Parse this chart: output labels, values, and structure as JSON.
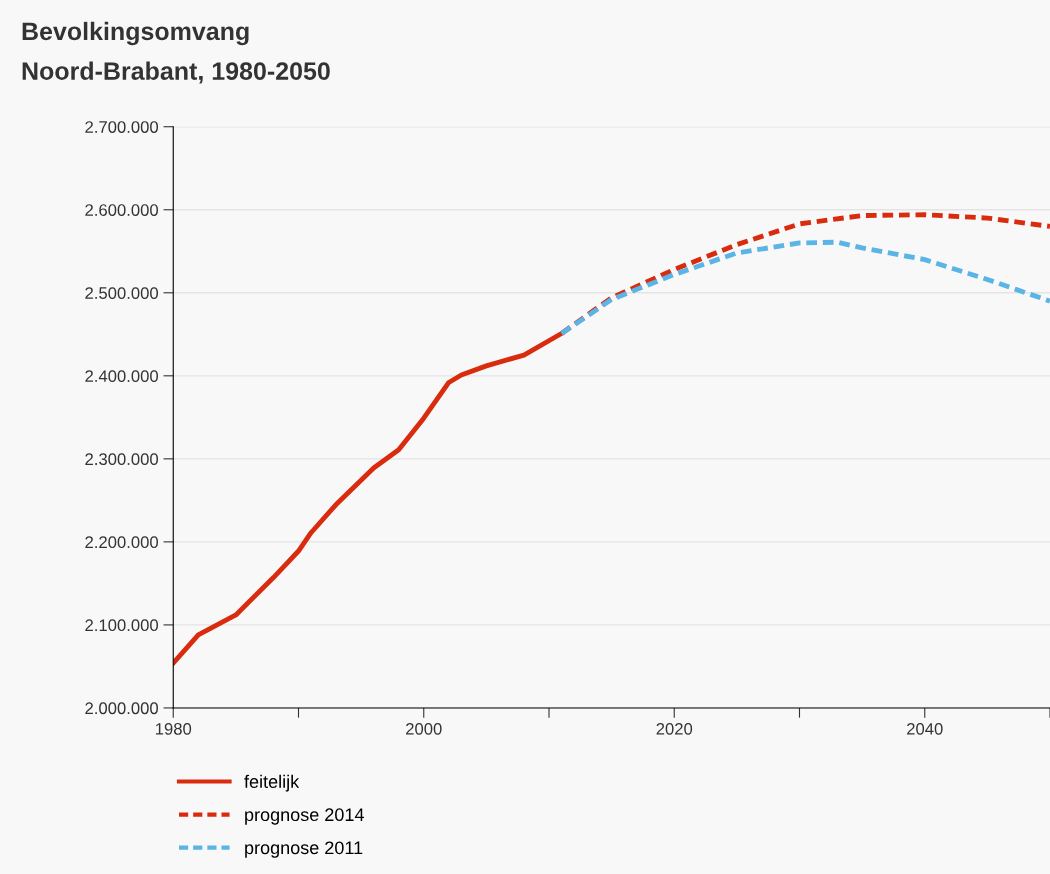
{
  "chart_data": {
    "type": "line",
    "title": "Bevolkingsomvang\nNoord-Brabant, 1980-2050",
    "series": [
      {
        "name": "feitelijk",
        "color": "#d92b0e",
        "line_style": "solid",
        "x": [
          1980,
          1982,
          1985,
          1988,
          1990,
          1991,
          1993,
          1996,
          1998,
          2000,
          2002,
          2003,
          2005,
          2008,
          2011
        ],
        "values": [
          2054000,
          2088000,
          2112000,
          2157000,
          2189000,
          2211000,
          2245000,
          2289000,
          2311000,
          2349000,
          2392000,
          2401000,
          2412000,
          2425000,
          2451000
        ]
      },
      {
        "name": "prognose 2014",
        "color": "#d92b0e",
        "line_style": "dashed",
        "x": [
          2011,
          2015,
          2020,
          2025,
          2030,
          2035,
          2040,
          2045,
          2050
        ],
        "values": [
          2451000,
          2494000,
          2528000,
          2558000,
          2583000,
          2593000,
          2594000,
          2590000,
          2580000
        ]
      },
      {
        "name": "prognose 2011",
        "color": "#5ab4e5",
        "line_style": "dashed",
        "x": [
          2011,
          2015,
          2020,
          2025,
          2030,
          2033,
          2035,
          2040,
          2045,
          2050
        ],
        "values": [
          2451000,
          2492000,
          2522000,
          2548000,
          2560000,
          2561000,
          2554000,
          2540000,
          2516000,
          2490000
        ]
      }
    ],
    "xlim": [
      1980,
      2050
    ],
    "xticks": [
      1980,
      {
        "value": 1990,
        "label": null
      },
      2000,
      {
        "value": 2010,
        "label": null
      },
      2020,
      {
        "value": 2030,
        "label": null
      },
      2040,
      {
        "value": 2050,
        "label": null
      }
    ],
    "ylim": [
      2000000,
      2700000
    ],
    "yticks": [
      {
        "value": 2000000,
        "label": "2.000.000"
      },
      {
        "value": 2100000,
        "label": "2.100.000"
      },
      {
        "value": 2200000,
        "label": "2.200.000"
      },
      {
        "value": 2300000,
        "label": "2.300.000"
      },
      {
        "value": 2400000,
        "label": "2.400.000"
      },
      {
        "value": 2500000,
        "label": "2.500.000"
      },
      {
        "value": 2600000,
        "label": "2.600.000"
      },
      {
        "value": 2700000,
        "label": "2.700.000"
      }
    ],
    "grid": "y",
    "legend": "bottom left",
    "marker": "none"
  }
}
